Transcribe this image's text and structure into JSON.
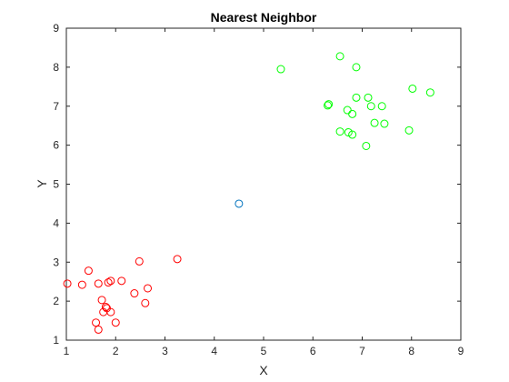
{
  "chart_data": {
    "type": "scatter",
    "title": "Nearest Neighbor",
    "xlabel": "X",
    "ylabel": "Y",
    "xlim": [
      1,
      9
    ],
    "ylim": [
      1,
      9
    ],
    "xticks": [
      "1",
      "2",
      "3",
      "4",
      "5",
      "6",
      "7",
      "8",
      "9"
    ],
    "yticks": [
      "1",
      "2",
      "3",
      "4",
      "5",
      "6",
      "7",
      "8",
      "9"
    ],
    "grid": false,
    "marker": "open-circle",
    "series": [
      {
        "color": "#ff0000",
        "points": [
          [
            1.02,
            2.45
          ],
          [
            1.32,
            2.42
          ],
          [
            1.45,
            2.78
          ],
          [
            1.65,
            2.45
          ],
          [
            1.85,
            2.48
          ],
          [
            1.9,
            2.52
          ],
          [
            2.12,
            2.52
          ],
          [
            2.48,
            3.02
          ],
          [
            3.25,
            3.08
          ],
          [
            1.72,
            2.03
          ],
          [
            1.75,
            1.72
          ],
          [
            1.8,
            1.85
          ],
          [
            1.82,
            1.82
          ],
          [
            1.9,
            1.72
          ],
          [
            1.6,
            1.45
          ],
          [
            1.65,
            1.27
          ],
          [
            2.0,
            1.45
          ],
          [
            2.38,
            2.2
          ],
          [
            2.6,
            1.95
          ],
          [
            2.65,
            2.33
          ]
        ]
      },
      {
        "color": "#00ff00",
        "points": [
          [
            5.35,
            7.95
          ],
          [
            6.55,
            8.28
          ],
          [
            6.88,
            8.0
          ],
          [
            6.3,
            7.02
          ],
          [
            6.32,
            7.05
          ],
          [
            6.7,
            6.9
          ],
          [
            6.8,
            6.8
          ],
          [
            6.88,
            7.22
          ],
          [
            7.12,
            7.22
          ],
          [
            7.18,
            7.0
          ],
          [
            7.4,
            7.0
          ],
          [
            8.02,
            7.45
          ],
          [
            8.38,
            7.35
          ],
          [
            7.25,
            6.57
          ],
          [
            7.45,
            6.55
          ],
          [
            7.95,
            6.38
          ],
          [
            6.55,
            6.35
          ],
          [
            6.72,
            6.33
          ],
          [
            6.8,
            6.27
          ],
          [
            7.08,
            5.98
          ]
        ]
      },
      {
        "color": "#0072bd",
        "points": [
          [
            4.5,
            4.5
          ]
        ]
      }
    ]
  }
}
